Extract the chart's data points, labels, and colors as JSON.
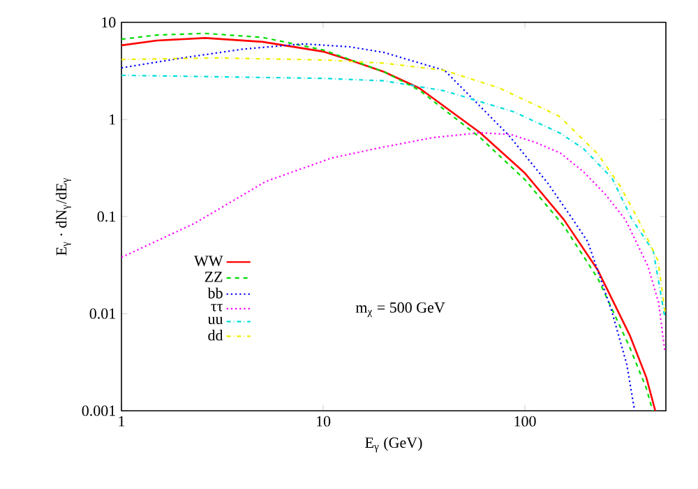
{
  "chart_data": {
    "type": "line",
    "log": "xy",
    "xlabel": "E$_{γ}$ (GeV)",
    "ylabel": "E$_{γ}$ · dN$_{γ}$/dE$_{γ}$",
    "xlim": [
      1,
      500
    ],
    "ylim": [
      0.001,
      10
    ],
    "xticks": [
      1,
      10,
      100
    ],
    "yticks": [
      0.001,
      0.01,
      0.1,
      1,
      10
    ],
    "grid": false,
    "legend": "bottom left",
    "marker": "none",
    "annotations": [
      "m$_{χ}$ = 500 GeV"
    ],
    "series": [
      {
        "name": "WW",
        "color": "#ff0000",
        "line_style": "solid",
        "x": [
          1,
          1.5,
          2.6,
          5,
          10,
          13.5,
          20,
          30,
          60,
          100,
          156,
          230,
          331,
          400,
          443
        ],
        "values": [
          5.8,
          6.5,
          6.9,
          6.3,
          5.0,
          4.1,
          3.1,
          2.1,
          0.73,
          0.28,
          0.093,
          0.028,
          0.006,
          0.0022,
          0.001
        ]
      },
      {
        "name": "ZZ",
        "color": "#00dd00",
        "line_style": "dashed",
        "x": [
          1,
          1.5,
          2.6,
          5,
          10,
          20,
          30,
          60,
          100,
          156,
          230,
          331,
          400,
          430
        ],
        "values": [
          6.7,
          7.4,
          7.7,
          7.0,
          5.2,
          3.1,
          2.0,
          0.65,
          0.24,
          0.08,
          0.023,
          0.0045,
          0.0017,
          0.001
        ]
      },
      {
        "name": "bb",
        "color": "#0000ff",
        "line_style": "dotted",
        "x": [
          1,
          2,
          4,
          8,
          13.5,
          20,
          40,
          83,
          130,
          175,
          205,
          270,
          320,
          350
        ],
        "values": [
          3.4,
          4.3,
          5.3,
          6.0,
          5.6,
          4.9,
          3.2,
          0.69,
          0.22,
          0.09,
          0.055,
          0.0105,
          0.003,
          0.001
        ]
      },
      {
        "name": "ττ",
        "color": "#ff00ff",
        "line_style": "dotted",
        "x": [
          1,
          2.3,
          5.2,
          11,
          19,
          35,
          60,
          85,
          113,
          150,
          195,
          250,
          315,
          407,
          460,
          495
        ],
        "values": [
          0.038,
          0.085,
          0.23,
          0.4,
          0.51,
          0.65,
          0.73,
          0.7,
          0.58,
          0.45,
          0.29,
          0.17,
          0.093,
          0.031,
          0.013,
          0.004
        ]
      },
      {
        "name": "uu",
        "color": "#00dddd",
        "line_style": "dashdot",
        "x": [
          1,
          3,
          10,
          20,
          40,
          88,
          150,
          195,
          270,
          340,
          433,
          495
        ],
        "values": [
          2.85,
          2.75,
          2.65,
          2.5,
          1.97,
          1.2,
          0.72,
          0.5,
          0.25,
          0.093,
          0.044,
          0.009
        ]
      },
      {
        "name": "dd",
        "color": "#eeee00",
        "line_style": "dashdot",
        "x": [
          1,
          3,
          10,
          20,
          40,
          75,
          148,
          230,
          295,
          365,
          457,
          495
        ],
        "values": [
          4.15,
          4.3,
          4.1,
          3.8,
          3.2,
          2.1,
          1.08,
          0.44,
          0.21,
          0.093,
          0.035,
          0.0105
        ]
      }
    ]
  }
}
